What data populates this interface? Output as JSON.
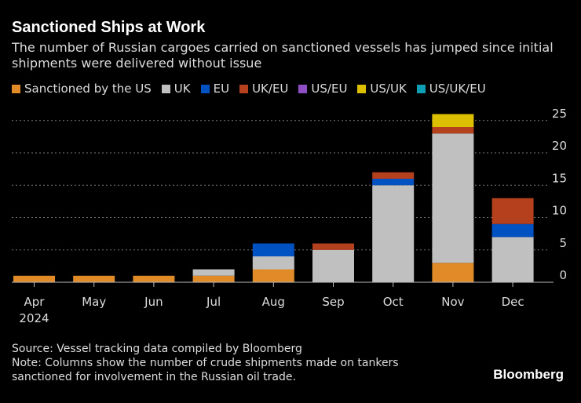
{
  "chart_data": {
    "type": "bar",
    "stacked": true,
    "title": "Sanctioned Ships at Work",
    "subtitle": "The number of Russian cargoes carried on sanctioned vessels has jumped since initial shipments were delivered without issue",
    "categories": [
      "Apr",
      "May",
      "Jun",
      "Jul",
      "Aug",
      "Sep",
      "Oct",
      "Nov",
      "Dec"
    ],
    "category_sublabel": {
      "Apr": "2024"
    },
    "series": [
      {
        "name": "Sanctioned by the US",
        "color": "#e08b27",
        "values": [
          1,
          1,
          1,
          1,
          2,
          0,
          0,
          3,
          0
        ]
      },
      {
        "name": "UK",
        "color": "#c0c0c0",
        "values": [
          0,
          0,
          0,
          1,
          2,
          5,
          15,
          20,
          7
        ]
      },
      {
        "name": "EU",
        "color": "#0052c2",
        "values": [
          0,
          0,
          0,
          0,
          2,
          0,
          1,
          0,
          2
        ]
      },
      {
        "name": "UK/EU",
        "color": "#b5401e",
        "values": [
          0,
          0,
          0,
          0,
          0,
          1,
          1,
          1,
          4
        ]
      },
      {
        "name": "US/EU",
        "color": "#8e4fc4",
        "values": [
          0,
          0,
          0,
          0,
          0,
          0,
          0,
          0,
          0
        ]
      },
      {
        "name": "US/UK",
        "color": "#dcc000",
        "values": [
          0,
          0,
          0,
          0,
          0,
          0,
          0,
          2,
          0
        ]
      },
      {
        "name": "US/UK/EU",
        "color": "#0e9fb5",
        "values": [
          0,
          0,
          0,
          0,
          0,
          0,
          0,
          0,
          0
        ]
      }
    ],
    "ylim": [
      0,
      25
    ],
    "yticks": [
      0,
      5,
      10,
      15,
      20,
      25
    ],
    "grid": true,
    "legend": "top"
  },
  "footer": {
    "source": "Source: Vessel tracking data compiled by Bloomberg",
    "note": "Note: Columns show the number of crude shipments made on tankers sanctioned for involvement in the Russian oil trade.",
    "logo": "Bloomberg"
  }
}
